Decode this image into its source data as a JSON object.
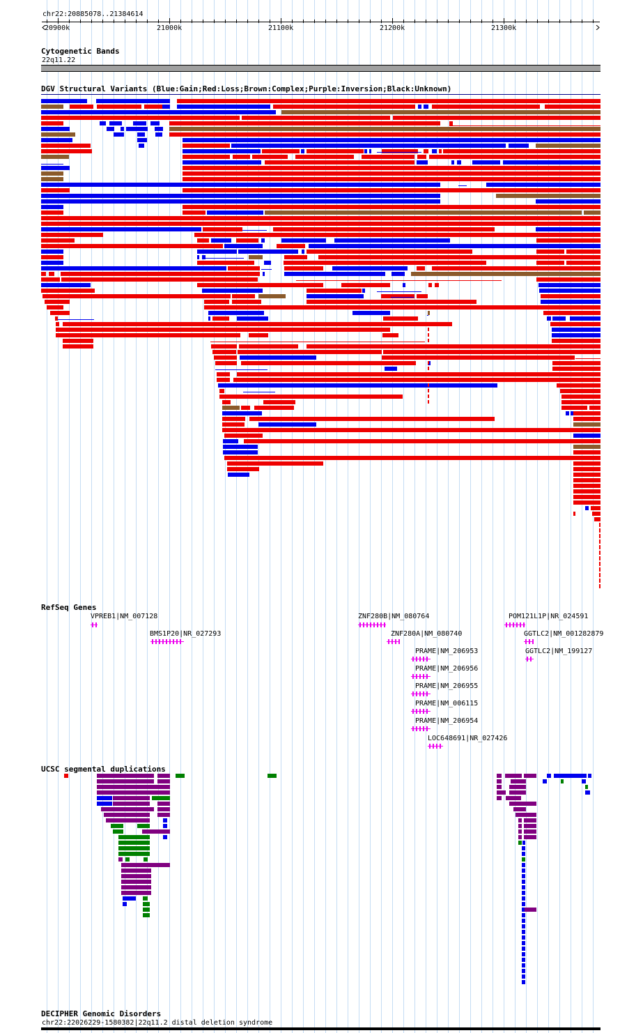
{
  "header": {
    "position": "chr22:20885078..21384614",
    "ticks": [
      "20900k",
      "21000k",
      "21100k",
      "21200k",
      "21300k"
    ]
  },
  "cytoband": {
    "title": "Cytogenetic Bands",
    "band": "22q11.22"
  },
  "dgv": {
    "title": "DGV Structural Variants (Blue:Gain;Red:Loss;Brown:Complex;Purple:Inversion;Black:Unknown)",
    "colors": {
      "gain": "#0000ee",
      "loss": "#ee0000",
      "complex": "#8b5a2b",
      "inversion": "#800080",
      "unknown": "#000000"
    }
  },
  "refseq": {
    "title": "RefSeq Genes",
    "color": "#ee00ee",
    "genes": [
      {
        "label": "VPREB1|NM_007128",
        "strand": "+"
      },
      {
        "label": "BMS1P20|NR_027293",
        "strand": "+"
      },
      {
        "label": "ZNF280B|NM_080764",
        "strand": "-"
      },
      {
        "label": "ZNF280A|NM_080740",
        "strand": "-"
      },
      {
        "label": "POM121L1P|NR_024591",
        "strand": "-"
      },
      {
        "label": "GGTLC2|NM_001282879",
        "strand": "+"
      },
      {
        "label": "GGTLC2|NM_199127",
        "strand": "+"
      },
      {
        "label": "PRAME|NM_206953",
        "strand": "-"
      },
      {
        "label": "PRAME|NM_206956",
        "strand": "-"
      },
      {
        "label": "PRAME|NM_206955",
        "strand": "-"
      },
      {
        "label": "PRAME|NM_006115",
        "strand": "-"
      },
      {
        "label": "PRAME|NM_206954",
        "strand": "-"
      },
      {
        "label": "LOC648691|NR_027426",
        "strand": "+"
      }
    ]
  },
  "segdup": {
    "title": "UCSC segmental duplications",
    "colors": {
      "purple": "#800080",
      "blue": "#0000ee",
      "green": "#008000",
      "red": "#ee0000"
    }
  },
  "decipher": {
    "title": "DECIPHER Genomic Disorders",
    "entry": "chr22:22026229-1580382|22q11.2 distal deletion syndrome"
  }
}
